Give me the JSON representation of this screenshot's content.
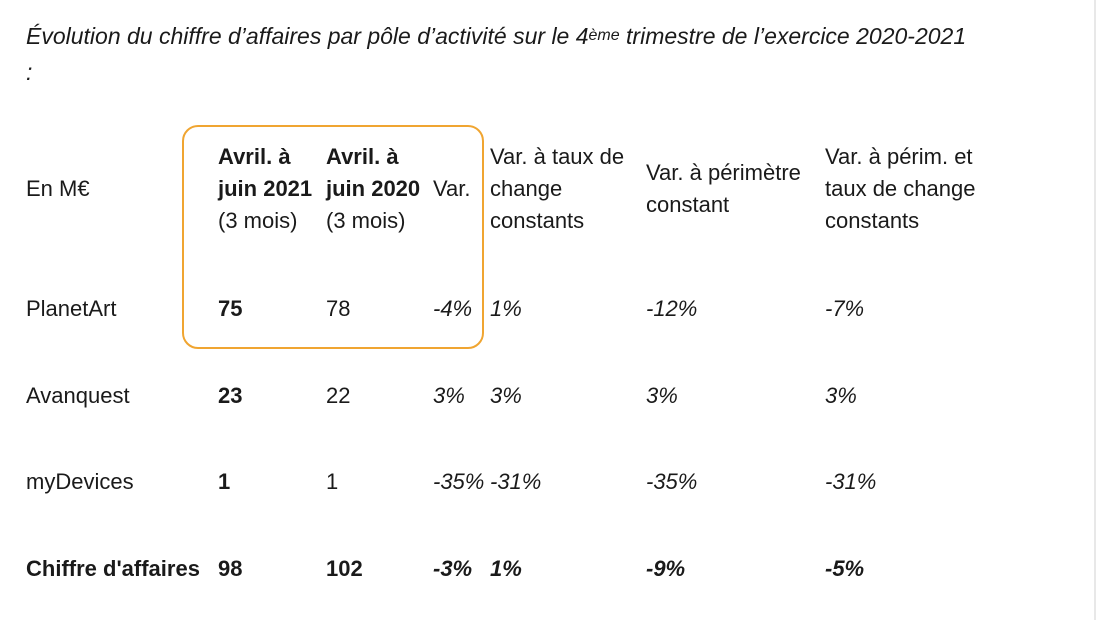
{
  "caption": {
    "prefix": "Évolution du chiffre d’affaires par pôle d’activité sur le 4",
    "sup": "ème",
    "suffix": " trimestre de l’exercice 2020-2021",
    "colon": ":"
  },
  "table": {
    "headers": {
      "unit": "En M€",
      "current": [
        "Avril. à",
        "juin 2021",
        "(3 mois)"
      ],
      "previous": [
        "Avril. à",
        "juin 2020",
        "(3 mois)"
      ],
      "var": "Var.",
      "var_fx": [
        "Var. à taux de",
        "change",
        "constants"
      ],
      "var_scope": [
        "Var. à périmètre",
        "constant"
      ],
      "var_scope_fx": [
        "Var. à périm. et",
        "taux de change",
        "constants"
      ]
    },
    "rows": [
      {
        "label": "PlanetArt",
        "current": "75",
        "previous": "78",
        "var": "-4%",
        "var_fx": "1%",
        "var_scope": "-12%",
        "var_scope_fx": "-7%"
      },
      {
        "label": "Avanquest",
        "current": "23",
        "previous": "22",
        "var": "3%",
        "var_fx": "3%",
        "var_scope": "3%",
        "var_scope_fx": "3%"
      },
      {
        "label": "myDevices",
        "current": "1",
        "previous": "1",
        "var": "-35%",
        "var_fx": "-31%",
        "var_scope": "-35%",
        "var_scope_fx": "-31%"
      },
      {
        "label": "Chiffre d'affaires",
        "current": "98",
        "previous": "102",
        "var": "-3%",
        "var_fx": "1%",
        "var_scope": "-9%",
        "var_scope_fx": "-5%"
      }
    ]
  }
}
